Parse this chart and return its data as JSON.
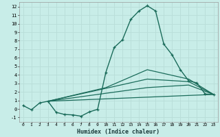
{
  "xlabel": "Humidex (Indice chaleur)",
  "bg_color": "#c8ede8",
  "grid_major_color": "#b8ddd8",
  "grid_minor_color": "#d8f0ec",
  "line_color": "#1a6b5a",
  "xlim": [
    -0.5,
    23.5
  ],
  "ylim": [
    -1.5,
    12.5
  ],
  "xticks": [
    0,
    1,
    2,
    3,
    4,
    5,
    6,
    7,
    8,
    9,
    10,
    11,
    12,
    13,
    14,
    15,
    16,
    17,
    18,
    19,
    20,
    21,
    22,
    23
  ],
  "yticks": [
    -1,
    0,
    1,
    2,
    3,
    4,
    5,
    6,
    7,
    8,
    9,
    10,
    11,
    12
  ],
  "line1_x": [
    0,
    1,
    2,
    3,
    4,
    5,
    6,
    7,
    8,
    9,
    10,
    11,
    12,
    13,
    14,
    15,
    16,
    17,
    18,
    19,
    20,
    21,
    22,
    23
  ],
  "line1_y": [
    0.4,
    -0.1,
    0.7,
    0.9,
    -0.4,
    -0.65,
    -0.7,
    -0.85,
    -0.35,
    -0.05,
    4.3,
    7.2,
    8.1,
    10.5,
    11.5,
    12.1,
    11.5,
    7.6,
    6.35,
    4.6,
    3.3,
    3.05,
    1.75,
    1.7
  ],
  "fan_lines": [
    {
      "x": [
        3,
        23
      ],
      "y": [
        0.9,
        1.7
      ]
    },
    {
      "x": [
        3,
        15,
        20,
        23
      ],
      "y": [
        0.9,
        2.5,
        2.8,
        1.7
      ]
    },
    {
      "x": [
        3,
        15,
        20,
        23
      ],
      "y": [
        0.9,
        3.5,
        3.2,
        1.7
      ]
    },
    {
      "x": [
        3,
        10,
        15,
        20,
        23
      ],
      "y": [
        0.9,
        2.5,
        4.6,
        3.5,
        1.7
      ]
    }
  ]
}
